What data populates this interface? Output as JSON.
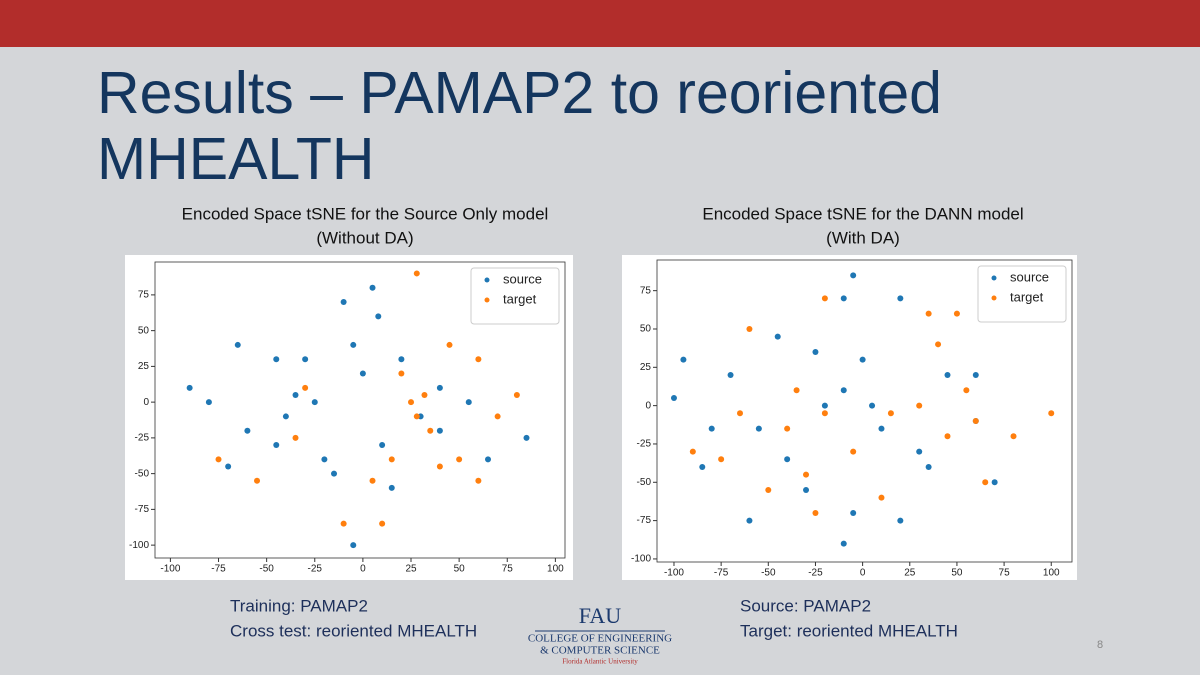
{
  "slide": {
    "title": "Results – PAMAP2 to reoriented MHEALTH",
    "page_number": "8"
  },
  "chart_data": [
    {
      "type": "scatter",
      "title": "Encoded Space tSNE for the Source Only model",
      "subtitle": "(Without DA)",
      "xlim": [
        -108,
        105
      ],
      "ylim": [
        -109,
        98
      ],
      "xticks": [
        -100,
        -75,
        -50,
        -25,
        0,
        25,
        50,
        75,
        100
      ],
      "yticks": [
        -100,
        -75,
        -50,
        -25,
        0,
        25,
        50,
        75
      ],
      "legend": "upper right",
      "series": [
        {
          "name": "source",
          "color": "#1f77b4",
          "x": [
            5,
            -10,
            0,
            -25,
            -20,
            -60,
            -80,
            30,
            -45,
            10,
            40,
            -30,
            55,
            -65,
            -90,
            85,
            -5,
            20,
            -40,
            15,
            -5,
            65,
            -45,
            -70,
            40,
            -15,
            -35,
            8
          ],
          "values": [
            80,
            70,
            20,
            0,
            -40,
            -20,
            0,
            -10,
            30,
            -30,
            -20,
            30,
            0,
            40,
            10,
            -25,
            40,
            30,
            -10,
            -60,
            -100,
            -40,
            -30,
            -45,
            10,
            -50,
            5,
            60
          ]
        },
        {
          "name": "target",
          "color": "#ff7f0e",
          "x": [
            25,
            35,
            50,
            45,
            20,
            60,
            -10,
            10,
            -55,
            5,
            60,
            -30,
            -75,
            28,
            15,
            -35,
            40,
            70,
            80,
            28,
            32
          ],
          "values": [
            0,
            -20,
            -40,
            40,
            20,
            30,
            -85,
            -85,
            -55,
            -55,
            -55,
            10,
            -40,
            -10,
            -40,
            -25,
            -45,
            -10,
            5,
            90,
            5
          ]
        }
      ]
    },
    {
      "type": "scatter",
      "title": "Encoded Space tSNE for the DANN model",
      "subtitle": "(With DA)",
      "xlim": [
        -109,
        111
      ],
      "ylim": [
        -102,
        95
      ],
      "xticks": [
        -100,
        -75,
        -50,
        -25,
        0,
        25,
        50,
        75,
        100
      ],
      "yticks": [
        -100,
        -75,
        -50,
        -25,
        0,
        25,
        50,
        75
      ],
      "legend": "upper right",
      "series": [
        {
          "name": "source",
          "color": "#1f77b4",
          "x": [
            -95,
            -100,
            -80,
            -55,
            -20,
            -10,
            5,
            10,
            30,
            45,
            60,
            20,
            -10,
            -30,
            -5,
            20,
            -60,
            -40,
            -70,
            -45,
            -25,
            60,
            70,
            0,
            -85,
            -10,
            35,
            -5
          ],
          "values": [
            30,
            5,
            -15,
            -15,
            0,
            10,
            0,
            -15,
            -30,
            20,
            20,
            70,
            70,
            -55,
            -70,
            -75,
            -75,
            -35,
            20,
            45,
            35,
            -10,
            -50,
            30,
            -40,
            -90,
            -40,
            85
          ]
        },
        {
          "name": "target",
          "color": "#ff7f0e",
          "x": [
            -60,
            -90,
            -75,
            -50,
            -30,
            -25,
            -35,
            -20,
            30,
            45,
            55,
            40,
            60,
            15,
            -65,
            80,
            -20,
            50,
            10,
            100,
            35,
            -40,
            -5,
            65
          ],
          "values": [
            50,
            -30,
            -35,
            -55,
            -45,
            -70,
            10,
            -5,
            0,
            -20,
            10,
            40,
            -10,
            -5,
            -5,
            -20,
            70,
            60,
            -60,
            -5,
            60,
            -15,
            -30,
            -50
          ]
        }
      ]
    }
  ],
  "notes": {
    "left": [
      "Training: PAMAP2",
      "Cross test: reoriented MHEALTH"
    ],
    "right": [
      "Source: PAMAP2",
      "Target: reoriented MHEALTH"
    ]
  },
  "logo": {
    "mark": "FAU",
    "line1": "College of Engineering",
    "line2": "& Computer Science",
    "line3": "Florida Atlantic University"
  }
}
